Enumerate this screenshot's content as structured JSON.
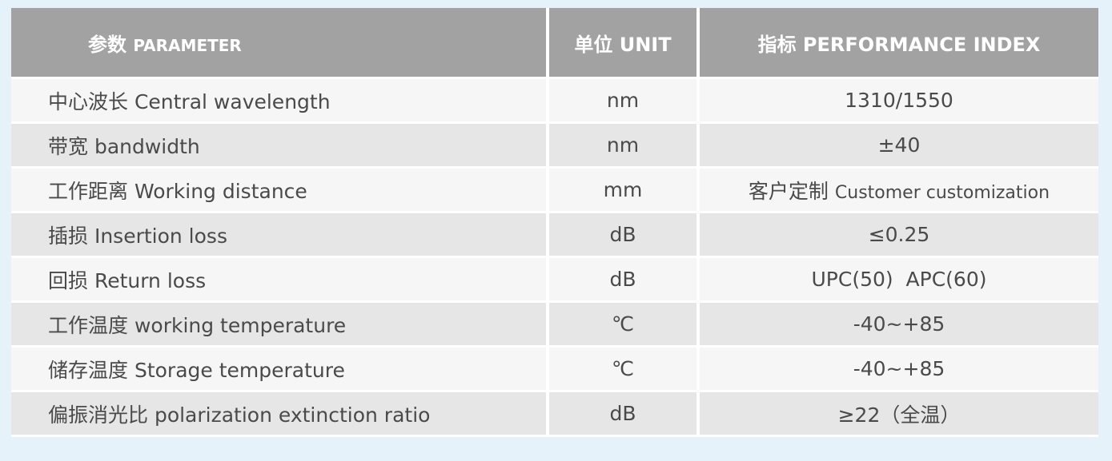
{
  "header": {
    "parameter_cn": "参数",
    "parameter_en": "PARAMETER",
    "unit": "单位 UNIT",
    "index": "指标 PERFORMANCE INDEX"
  },
  "rows": [
    {
      "param": "中心波长 Central wavelength",
      "unit": "nm",
      "value": "1310/1550"
    },
    {
      "param": "带宽 bandwidth",
      "unit": "nm",
      "value": "±40"
    },
    {
      "param": "工作距离 Working distance",
      "unit": "mm",
      "value_cn": "客户定制",
      "value_en": "Customer customization"
    },
    {
      "param": "插损 Insertion loss",
      "unit": "dB",
      "value": "≤0.25"
    },
    {
      "param": "回损 Return loss",
      "unit": "dB",
      "value": "UPC(50)  APC(60)"
    },
    {
      "param": "工作温度 working temperature",
      "unit": "℃",
      "value": "-40~+85"
    },
    {
      "param": "储存温度 Storage temperature",
      "unit": "℃",
      "value": "-40~+85"
    },
    {
      "param": "偏振消光比 polarization extinction ratio",
      "unit": "dB",
      "value": "≥22（全温）"
    }
  ]
}
